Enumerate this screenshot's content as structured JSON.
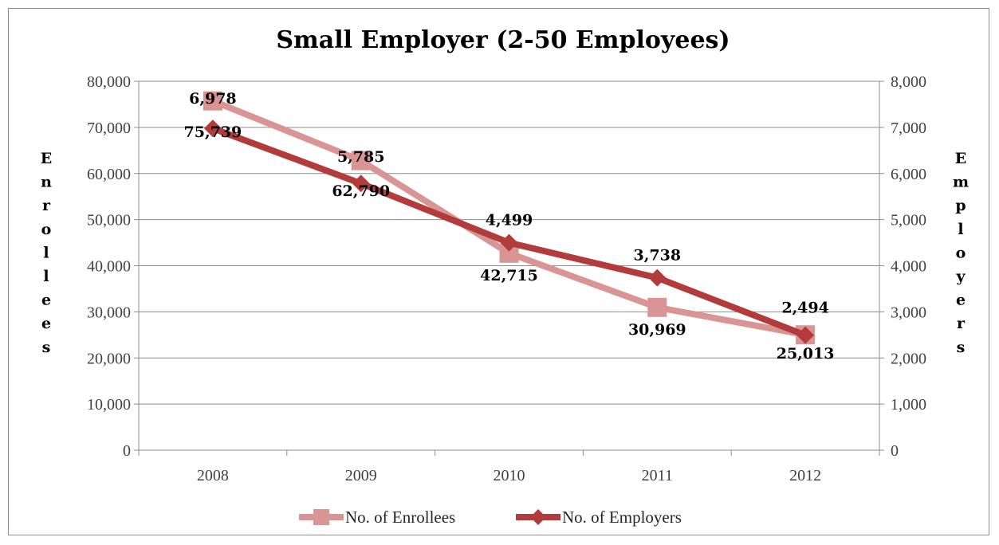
{
  "chart_data": {
    "type": "line",
    "title": "Small Employer (2-50 Employees)",
    "categories": [
      "2008",
      "2009",
      "2010",
      "2011",
      "2012"
    ],
    "y_left": {
      "label": "Enrollees",
      "range": [
        0,
        80000
      ],
      "ticks": [
        "0",
        "10,000",
        "20,000",
        "30,000",
        "40,000",
        "50,000",
        "60,000",
        "70,000",
        "80,000"
      ]
    },
    "y_right": {
      "label": "Employers",
      "range": [
        0,
        8000
      ],
      "ticks": [
        "0",
        "1,000",
        "2,000",
        "3,000",
        "4,000",
        "5,000",
        "6,000",
        "7,000",
        "8,000"
      ]
    },
    "series": [
      {
        "name": "No. of Enrollees",
        "axis": "left",
        "color": "#d99594",
        "marker": "square",
        "values": [
          75739,
          62790,
          42715,
          30969,
          25013
        ],
        "labels": [
          "75,739",
          "62,790",
          "42,715",
          "30,969",
          "25,013"
        ]
      },
      {
        "name": "No. of Employers",
        "axis": "right",
        "color": "#b23b3b",
        "marker": "diamond",
        "values": [
          6978,
          5785,
          4499,
          3738,
          2494
        ],
        "labels": [
          "6,978",
          "5,785",
          "4,499",
          "3,738",
          "2,494"
        ]
      }
    ],
    "grid": true,
    "legend": "bottom"
  }
}
